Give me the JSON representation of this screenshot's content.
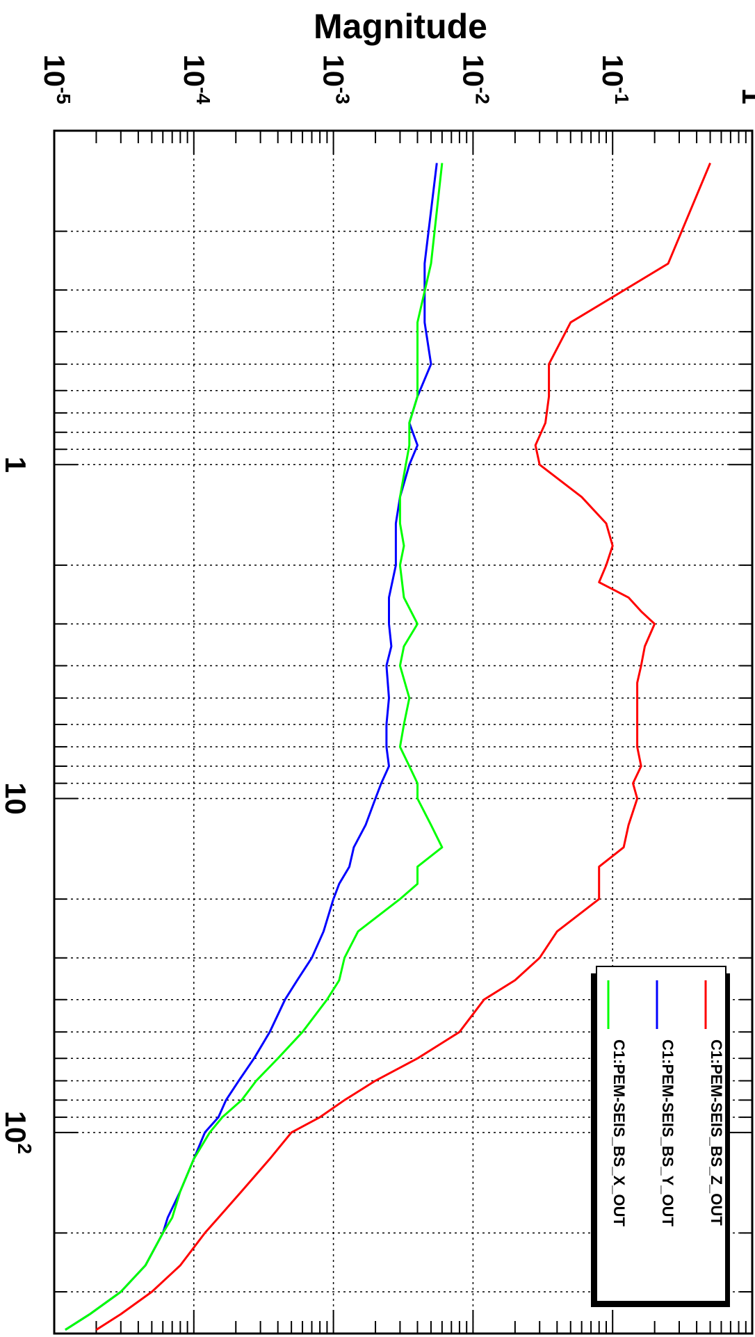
{
  "chart_data": {
    "type": "line",
    "orientation": "rotated 90 degrees clockwise",
    "x_scale": "log",
    "y_scale": "log",
    "xlim": [
      0.1,
      400
    ],
    "ylim": [
      1e-05,
      1
    ],
    "ylabel": "Magnitude",
    "grid": true,
    "legend_position": "bottom-right",
    "y_tick_labels": [
      {
        "base": "10",
        "exp": "-5",
        "value": 1e-05
      },
      {
        "base": "10",
        "exp": "-4",
        "value": 0.0001
      },
      {
        "base": "10",
        "exp": "-3",
        "value": 0.001
      },
      {
        "base": "10",
        "exp": "-2",
        "value": 0.01
      },
      {
        "base": "10",
        "exp": "-1",
        "value": 0.1
      },
      {
        "base": "1",
        "exp": "",
        "value": 1
      }
    ],
    "x_tick_labels": [
      {
        "base": "1",
        "exp": "",
        "value": 1
      },
      {
        "base": "10",
        "exp": "",
        "value": 10
      },
      {
        "base": "10",
        "exp": "2",
        "value": 100
      }
    ],
    "series": [
      {
        "name": "C1:PEM-SEIS_BS_Z_OUT",
        "color": "#ff0000",
        "x": [
          0.125,
          0.25,
          0.375,
          0.5,
          0.625,
          0.75,
          0.875,
          1.0,
          1.25,
          1.5,
          1.75,
          2.0,
          2.25,
          2.5,
          2.75,
          3.0,
          3.5,
          4.0,
          4.5,
          5.0,
          6.0,
          7.0,
          8.0,
          9.0,
          10.0,
          12.0,
          14.0,
          16.0,
          18.0,
          20.0,
          25.0,
          30.0,
          35.0,
          40.0,
          50.0,
          60.0,
          70.0,
          80.0,
          90.0,
          100.0,
          120.0,
          150.0,
          180.0,
          200.0,
          250.0,
          300.0,
          350.0,
          390.0
        ],
        "y": [
          0.5,
          0.25,
          0.05,
          0.035,
          0.035,
          0.033,
          0.028,
          0.03,
          0.06,
          0.09,
          0.1,
          0.09,
          0.08,
          0.13,
          0.16,
          0.2,
          0.17,
          0.16,
          0.15,
          0.15,
          0.15,
          0.15,
          0.16,
          0.14,
          0.15,
          0.13,
          0.12,
          0.08,
          0.08,
          0.08,
          0.04,
          0.03,
          0.02,
          0.012,
          0.008,
          0.004,
          0.002,
          0.0012,
          0.0008,
          0.0005,
          0.00035,
          0.00022,
          0.00015,
          0.00012,
          8e-05,
          5e-05,
          3e-05,
          2e-05
        ]
      },
      {
        "name": "C1:PEM-SEIS_BS_Y_OUT",
        "color": "#0000ff",
        "x": [
          0.125,
          0.25,
          0.375,
          0.5,
          0.625,
          0.75,
          0.875,
          1.0,
          1.25,
          1.5,
          1.75,
          2.0,
          2.5,
          3.0,
          3.5,
          4.0,
          5.0,
          6.0,
          7.0,
          8.0,
          9.0,
          10.0,
          12.0,
          14.0,
          16.0,
          18.0,
          20.0,
          25.0,
          30.0,
          35.0,
          40.0,
          50.0,
          60.0,
          70.0,
          80.0,
          90.0,
          100.0,
          120.0,
          150.0,
          180.0,
          200.0,
          250.0,
          300.0,
          350.0,
          390.0
        ],
        "y": [
          0.0055,
          0.0045,
          0.0045,
          0.005,
          0.004,
          0.0035,
          0.004,
          0.0035,
          0.003,
          0.0028,
          0.0028,
          0.0028,
          0.0025,
          0.0025,
          0.0026,
          0.0024,
          0.0025,
          0.0024,
          0.0024,
          0.0025,
          0.0022,
          0.002,
          0.0017,
          0.0014,
          0.0013,
          0.0011,
          0.001,
          0.00085,
          0.0007,
          0.00055,
          0.00045,
          0.00035,
          0.00027,
          0.00021,
          0.00017,
          0.00015,
          0.00012,
          0.0001,
          8e-05,
          6.5e-05,
          6e-05,
          4.5e-05,
          3e-05,
          1.8e-05,
          1.2e-05
        ]
      },
      {
        "name": "C1:PEM-SEIS_BS_X_OUT",
        "color": "#00ff00",
        "x": [
          0.125,
          0.25,
          0.375,
          0.5,
          0.625,
          0.75,
          0.875,
          1.0,
          1.25,
          1.5,
          1.75,
          2.0,
          2.5,
          3.0,
          3.5,
          4.0,
          5.0,
          6.0,
          7.0,
          8.0,
          9.0,
          10.0,
          12.0,
          14.0,
          16.0,
          18.0,
          20.0,
          25.0,
          30.0,
          35.0,
          40.0,
          50.0,
          60.0,
          70.0,
          80.0,
          90.0,
          100.0,
          120.0,
          150.0,
          180.0,
          200.0,
          250.0,
          300.0,
          350.0,
          390.0
        ],
        "y": [
          0.006,
          0.005,
          0.004,
          0.004,
          0.004,
          0.0035,
          0.0035,
          0.0033,
          0.003,
          0.003,
          0.0032,
          0.003,
          0.0032,
          0.004,
          0.0032,
          0.003,
          0.0035,
          0.0032,
          0.003,
          0.0035,
          0.004,
          0.004,
          0.005,
          0.006,
          0.004,
          0.004,
          0.003,
          0.0015,
          0.0012,
          0.0011,
          0.0009,
          0.0006,
          0.0004,
          0.00028,
          0.00022,
          0.00016,
          0.00013,
          0.0001,
          8e-05,
          7e-05,
          6e-05,
          4.5e-05,
          3e-05,
          1.8e-05,
          1.2e-05
        ]
      }
    ]
  }
}
